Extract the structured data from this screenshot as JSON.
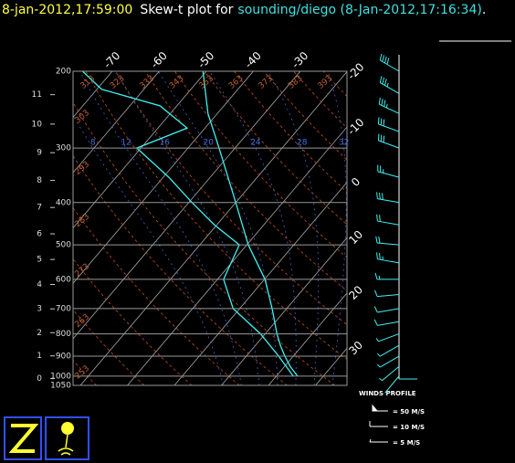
{
  "chart_data": {
    "type": "skewt",
    "header": {
      "date": "8-jan-2012,17:59:00",
      "label": "Skew-t plot for",
      "station": "sounding/diego (8-Jan-2012,17:16:34)",
      "end": "."
    },
    "plim": [
      1050,
      200
    ],
    "pressure_ticks": [
      200,
      300,
      400,
      500,
      600,
      700,
      800,
      900,
      1000,
      1050
    ],
    "height_ticks": [
      0,
      1,
      2,
      3,
      4,
      5,
      6,
      7,
      8,
      9,
      10,
      11
    ],
    "isotherm_ticks": [
      -70,
      -60,
      -50,
      -40,
      -30,
      -20,
      -10,
      0,
      10,
      20,
      30
    ],
    "dry_adiabats": [
      253,
      263,
      273,
      283,
      293,
      303,
      313,
      323,
      333,
      343,
      353,
      363,
      373,
      383,
      393
    ],
    "moist_adiabats": [
      8,
      12,
      16,
      20,
      24,
      28,
      32
    ],
    "series": [
      {
        "color": "#40f0f0",
        "p": [
          1000,
          950,
          900,
          850,
          800,
          700,
          600,
          500,
          400,
          300,
          250,
          200
        ],
        "values": [
          24.5,
          21.2,
          18.2,
          15.3,
          12.5,
          6.9,
          0.1,
          -9.7,
          -20,
          -33.4,
          -42,
          -50.7
        ]
      },
      {
        "color": "#40f0f0",
        "p": [
          1000,
          900,
          800,
          700,
          600,
          500,
          450,
          400,
          350,
          300,
          270,
          240,
          220,
          200
        ],
        "values": [
          23.6,
          16.9,
          9,
          -1.4,
          -8.7,
          -11.6,
          -20.5,
          -29.3,
          -38.8,
          -50.9,
          -43.8,
          -53.6,
          -69,
          -76.3
        ]
      }
    ],
    "winds": {
      "title": "WINDS PROFILE",
      "color": "#40f0f0",
      "p": [
        200,
        225,
        250,
        275,
        300,
        350,
        400,
        450,
        500,
        550,
        600,
        650,
        700,
        750,
        800,
        850,
        900,
        950,
        1000
      ],
      "speed": [
        40,
        35,
        35,
        30,
        30,
        25,
        30,
        20,
        20,
        25,
        15,
        12,
        10,
        10,
        8,
        5,
        5,
        5,
        3
      ],
      "direction": [
        300,
        300,
        295,
        290,
        290,
        285,
        280,
        280,
        275,
        280,
        270,
        265,
        260,
        260,
        250,
        240,
        240,
        230,
        220
      ],
      "legend": [
        "= 50 M/S",
        "= 10 M/S",
        "= 5 M/S"
      ]
    }
  }
}
